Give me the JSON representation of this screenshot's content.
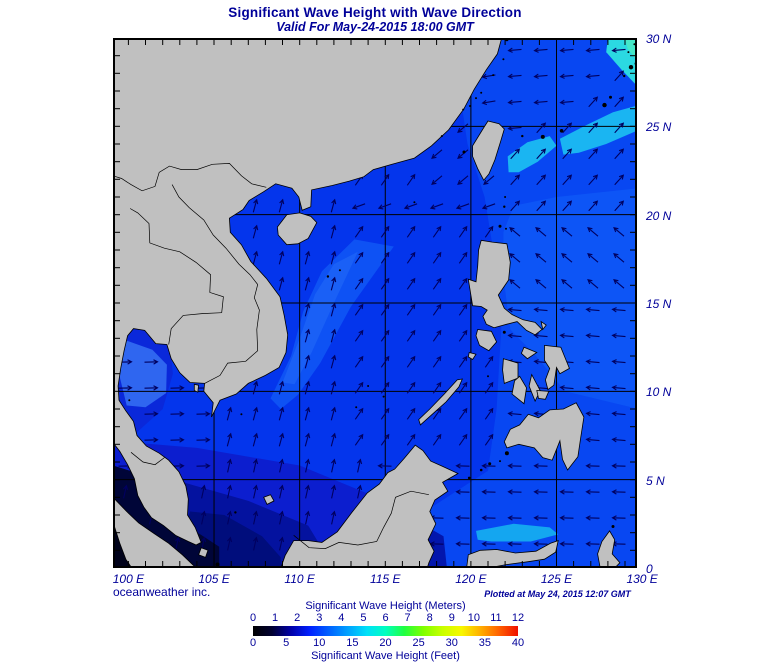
{
  "header": {
    "title": "Significant Wave Height with Wave Direction",
    "subtitle": "Valid For May-24-2015 18:00 GMT"
  },
  "map": {
    "lat_labels": [
      "30 N",
      "25 N",
      "20 N",
      "15 N",
      "10 N",
      "5 N",
      "0"
    ],
    "lon_labels": [
      "100 E",
      "105 E",
      "110 E",
      "115 E",
      "120 E",
      "125 E",
      "130 E"
    ],
    "credit": "oceanweather inc.",
    "plotted_at": "Plotted at May 24, 2015 12:07 GMT",
    "grid_interval_degrees": 5
  },
  "legend": {
    "meters_label": "Significant Wave Height (Meters)",
    "feet_label": "Significant Wave Height (Feet)",
    "meters_ticks": [
      "0",
      "1",
      "2",
      "3",
      "4",
      "5",
      "6",
      "7",
      "8",
      "9",
      "10",
      "11",
      "12"
    ],
    "feet_ticks": [
      "0",
      "5",
      "10",
      "15",
      "20",
      "25",
      "30",
      "35",
      "40"
    ],
    "scale_colors": [
      "#000000",
      "#000030",
      "#0000a8",
      "#0020ff",
      "#0060ff",
      "#00a0ff",
      "#00e0f8",
      "#00ffc0",
      "#20ff40",
      "#80ff00",
      "#c8ff00",
      "#f8f800",
      "#ffb000",
      "#ff6000",
      "#f01000"
    ]
  },
  "colors": {
    "text": "#000099",
    "land": "#c0c0c0",
    "coast": "#000000",
    "grid": "#000000",
    "arrow": "#000060",
    "ocean_base": "#0435ec",
    "ocean_pacific": "#0847f2",
    "ocean_light": "#0d55f6",
    "cyan_patch": "#1ab5f2",
    "cyan_ne": "#2bd9e2",
    "aqua_ne": "#45e8c8",
    "vn_band": "#0e52f4",
    "vn_band_core": "#1a60f6",
    "gulf_base": "#0a28da",
    "gulf_bright": "#2f66f0",
    "south_dark1": "#0c1ecf",
    "south_dark2": "#04129f",
    "karimata": "#000d7c",
    "malacca": "#000538",
    "corner_dark": "#00021a",
    "makassar": "#0316ac",
    "celebes_cyan": "#14a6f0"
  },
  "wave_field": {
    "arrow_color": "#000060",
    "zones": [
      {
        "name": "gulf-of-thailand",
        "lon": [
          99,
          104.8
        ],
        "lat": [
          5.5,
          13.8
        ],
        "dir": 88
      },
      {
        "name": "south-china-sea-south",
        "lon": [
          99,
          113.5
        ],
        "lat": [
          0,
          6.5
        ],
        "dir": 12
      },
      {
        "name": "equatorial-pacific-celebes",
        "lon": [
          113.5,
          130
        ],
        "lat": [
          0,
          7
        ],
        "dir": 272
      },
      {
        "name": "west-of-ryukyu",
        "lon": [
          121.5,
          130
        ],
        "lat": [
          24,
          30
        ],
        "dir": 265,
        "west_of_chain": true
      },
      {
        "name": "philippine-sea-north",
        "lon": [
          121.5,
          130
        ],
        "lat": [
          19.5,
          30
        ],
        "dir": 42
      },
      {
        "name": "philippine-sea-mid",
        "lon": [
          121.5,
          130
        ],
        "lat": [
          15,
          19.5
        ],
        "dir": 310
      },
      {
        "name": "philippine-sea-south",
        "lon": [
          121.5,
          130
        ],
        "lat": [
          7,
          15
        ],
        "dir": 275
      },
      {
        "name": "east-china-sea",
        "lon": [
          99,
          130
        ],
        "lat": [
          26,
          30
        ],
        "dir": 260
      },
      {
        "name": "taiwan-strait",
        "lon": [
          117,
          130
        ],
        "lat": [
          21.5,
          26
        ],
        "dir": 230
      },
      {
        "name": "south-china-coast",
        "lon": [
          112,
          130
        ],
        "lat": [
          19.5,
          21.5
        ],
        "dir": 250
      },
      {
        "name": "south-china-sea-west",
        "lon": [
          99,
          113
        ],
        "lat": [
          0,
          30
        ],
        "dir": 15
      },
      {
        "name": "south-china-sea-east",
        "lon": [
          99,
          130
        ],
        "lat": [
          0,
          30
        ],
        "dir": 35
      }
    ]
  }
}
